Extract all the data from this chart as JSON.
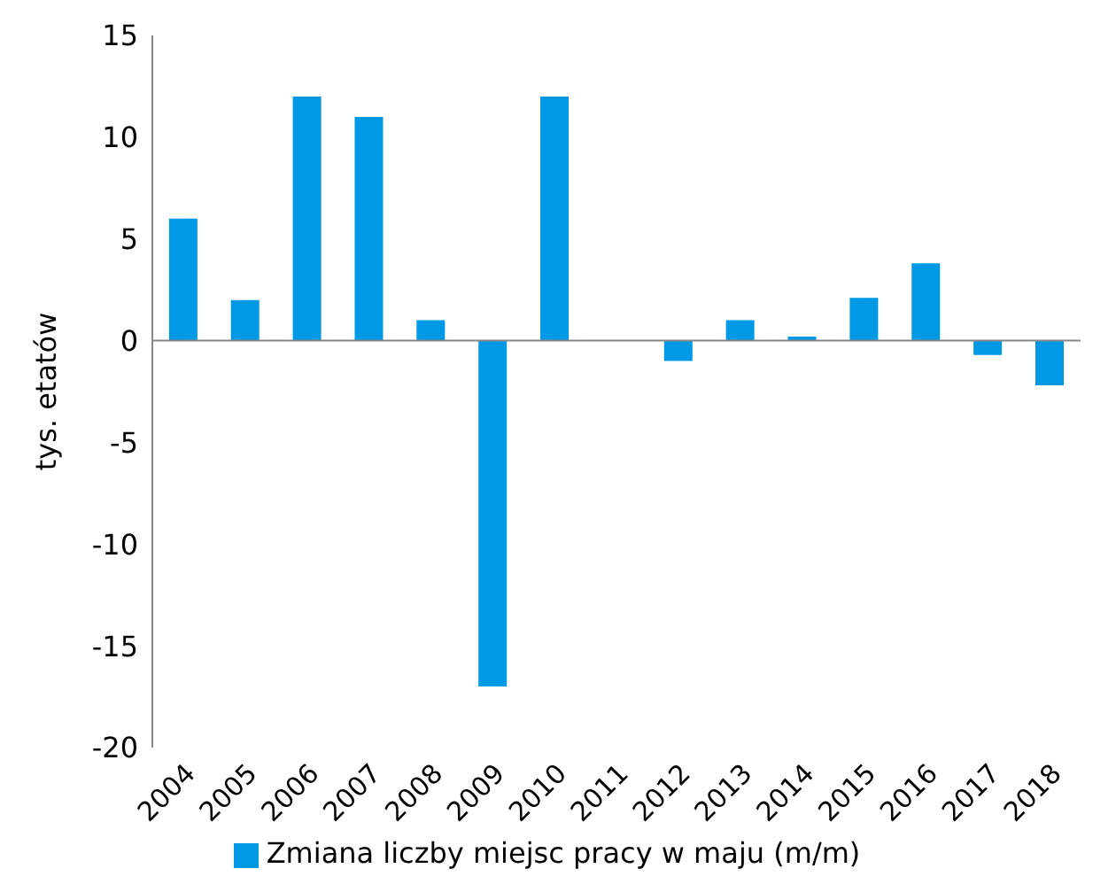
{
  "chart_data": {
    "type": "bar",
    "ylabel": "tys. etatów",
    "categories": [
      "2004",
      "2005",
      "2006",
      "2007",
      "2008",
      "2009",
      "2010",
      "2011",
      "2012",
      "2013",
      "2014",
      "2015",
      "2016",
      "2017",
      "2018"
    ],
    "series": [
      {
        "name": "Zmiana liczby miejsc pracy w maju (m/m)",
        "color": "#0099e6",
        "values": [
          6,
          2,
          12,
          11,
          1,
          -17,
          12,
          0,
          -1,
          1,
          0.2,
          2.1,
          3.8,
          -0.7,
          -2.2
        ]
      }
    ],
    "ylim": [
      -20,
      15
    ],
    "yticks": [
      -20,
      -15,
      -10,
      -5,
      0,
      5,
      10,
      15
    ],
    "legend": "bottom"
  }
}
